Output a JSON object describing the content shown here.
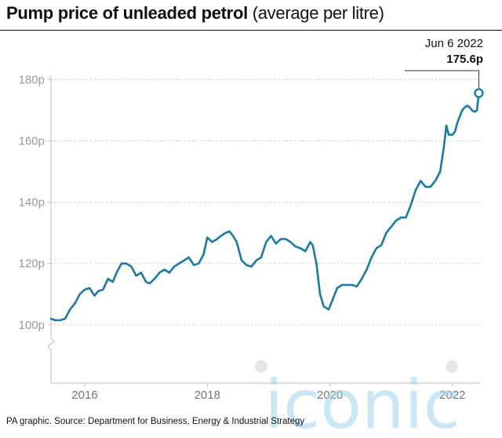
{
  "title": {
    "bold": "Pump price of unleaded petrol",
    "light": "(average per litre)"
  },
  "source": "PA graphic. Source: Department for Business, Energy & Industrial Strategy",
  "watermark": "iconic",
  "colors": {
    "line": "#1b7aa3",
    "grid": "#c8c8c8",
    "axis_text": "#999999",
    "watermark": "#9fd4ec",
    "watermark_dots": "#d3d3d3"
  },
  "chart_data": {
    "type": "line",
    "title": "Pump price of unleaded petrol (average per litre)",
    "xlabel": "",
    "ylabel": "",
    "x_ticks": [
      "2016",
      "2018",
      "2020",
      "2022"
    ],
    "x_tick_values": [
      2016,
      2018,
      2020,
      2022
    ],
    "xlim": [
      2015.45,
      2022.45
    ],
    "y_ticks": [
      "100p",
      "120p",
      "140p",
      "160p",
      "180p"
    ],
    "y_tick_values": [
      100,
      120,
      140,
      160,
      180
    ],
    "ylim": [
      81,
      186
    ],
    "y_axis_broken": true,
    "grid": "horizontal dotted",
    "annotation": {
      "date": "Jun 6 2022",
      "value_label": "175.6p",
      "x": 2022.43,
      "y": 175.6
    },
    "series": [
      {
        "x": [
          2015.45,
          2015.52,
          2015.6,
          2015.68,
          2015.76,
          2015.84,
          2015.92,
          2016.0,
          2016.08,
          2016.16,
          2016.22,
          2016.3,
          2016.38,
          2016.46,
          2016.52,
          2016.6,
          2016.68,
          2016.76,
          2016.84,
          2016.92,
          2017.0,
          2017.06,
          2017.14,
          2017.22,
          2017.3,
          2017.38,
          2017.46,
          2017.54,
          2017.62,
          2017.7,
          2017.78,
          2017.86,
          2017.94,
          2018.0,
          2018.08,
          2018.16,
          2018.22,
          2018.3,
          2018.36,
          2018.42,
          2018.48,
          2018.56,
          2018.64,
          2018.72,
          2018.8,
          2018.88,
          2018.96,
          2019.04,
          2019.12,
          2019.2,
          2019.28,
          2019.36,
          2019.44,
          2019.52,
          2019.6,
          2019.68,
          2019.72,
          2019.78,
          2019.84,
          2019.9,
          2019.98,
          2020.04,
          2020.12,
          2020.2,
          2020.28,
          2020.36,
          2020.44,
          2020.52,
          2020.6,
          2020.68,
          2020.76,
          2020.84,
          2020.92,
          2021.0,
          2021.08,
          2021.16,
          2021.24,
          2021.32,
          2021.4,
          2021.48,
          2021.56,
          2021.64,
          2021.72,
          2021.8,
          2021.86,
          2021.9,
          2021.94,
          2022.0,
          2022.04,
          2022.08,
          2022.12,
          2022.16,
          2022.2,
          2022.24,
          2022.28,
          2022.32,
          2022.36,
          2022.4,
          2022.43
        ],
        "y": [
          102,
          101.5,
          101.5,
          102,
          105,
          107,
          110,
          111.5,
          112,
          109.5,
          111,
          111.5,
          115,
          114,
          117,
          120,
          120,
          119,
          116,
          117,
          114,
          113.5,
          115,
          117,
          118,
          117,
          119,
          120,
          121,
          122,
          119.5,
          120,
          123,
          128.5,
          127,
          128,
          129,
          130,
          130.5,
          129,
          127,
          121,
          119.5,
          119,
          121,
          122,
          127,
          129,
          126.5,
          128,
          128,
          127,
          125.5,
          125,
          124,
          127,
          126,
          120,
          110,
          106,
          105,
          108,
          112,
          113,
          113,
          113,
          112.5,
          115,
          118,
          122,
          125,
          126,
          130,
          132,
          134,
          135,
          135,
          139,
          144,
          147,
          145,
          145,
          147,
          150,
          158,
          165,
          162,
          162,
          163,
          166,
          168,
          170,
          171,
          171.5,
          171,
          170,
          169.5,
          170,
          175.6
        ]
      }
    ]
  }
}
